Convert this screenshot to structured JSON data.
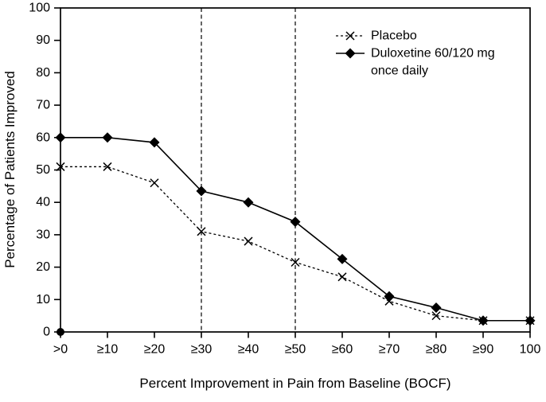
{
  "figure": {
    "background": "#ffffff",
    "foreground": "#000000"
  },
  "chart_data": {
    "type": "line",
    "title": "",
    "xlabel": "Percent Improvement in Pain from Baseline (BOCF)",
    "ylabel": "Percentage of Patients Improved",
    "categories": [
      ">0",
      "≥10",
      "≥20",
      "≥30",
      "≥40",
      "≥50",
      "≥60",
      "≥70",
      "≥80",
      "≥90",
      "100"
    ],
    "ylim": [
      0,
      100
    ],
    "ytick_step": 10,
    "ytick_labels": [
      "0",
      "10",
      "20",
      "30",
      "40",
      "50",
      "60",
      "70",
      "80",
      "90",
      "100"
    ],
    "grid": false,
    "legend_position": "top-right-inside",
    "origin_marker": true,
    "reference_lines": {
      "style": "vertical-dashed",
      "at_categories": [
        "≥30",
        "≥50"
      ]
    },
    "series": [
      {
        "name": "Placebo",
        "legend_lines": [
          "Placebo"
        ],
        "marker": "x",
        "line": "dashed",
        "color": "#000000",
        "values": [
          51,
          51,
          46,
          31,
          28,
          21.5,
          17,
          9.5,
          5,
          3.5,
          3.5
        ]
      },
      {
        "name": "Duloxetine 60/120 mg once daily",
        "legend_lines": [
          "Duloxetine 60/120 mg",
          "once daily"
        ],
        "marker": "diamond",
        "line": "solid",
        "color": "#000000",
        "values": [
          60,
          60,
          58.5,
          43.5,
          40,
          34,
          22.5,
          11,
          7.5,
          3.5,
          3.5
        ]
      }
    ]
  }
}
